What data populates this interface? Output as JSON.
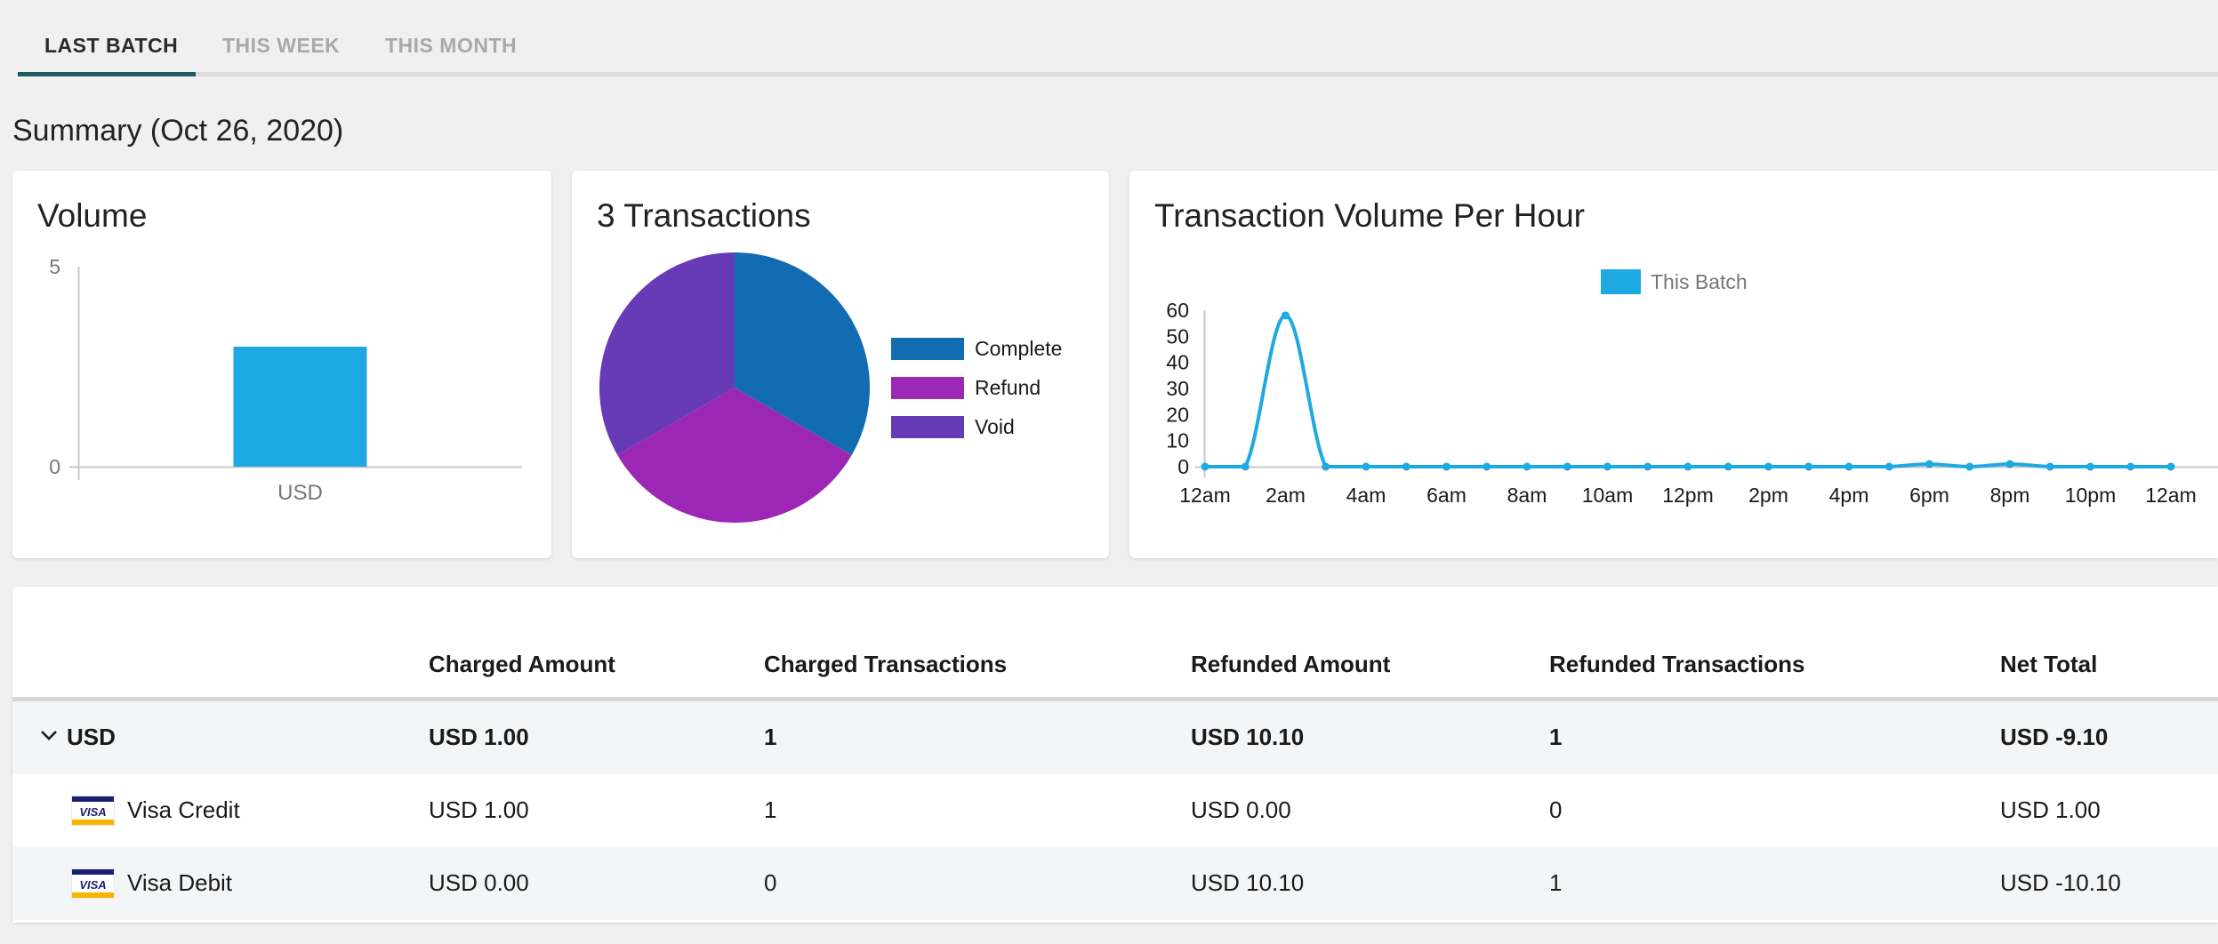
{
  "tabs": [
    "LAST BATCH",
    "THIS WEEK",
    "THIS MONTH"
  ],
  "summary_title": "Summary (Oct 26, 2020)",
  "cards": {
    "volume_title": "Volume",
    "transactions_title": "3 Transactions",
    "hourly_title": "Transaction Volume Per Hour"
  },
  "chart_data": [
    {
      "type": "bar",
      "title": "Volume",
      "categories": [
        "USD"
      ],
      "values": [
        3
      ],
      "yticks": [
        "5",
        "0"
      ],
      "ylim": [
        0,
        5
      ],
      "color": "#1ea9e3"
    },
    {
      "type": "pie",
      "title": "3 Transactions",
      "labels": [
        "Complete",
        "Refund",
        "Void"
      ],
      "values": [
        1,
        1,
        1
      ],
      "colors": [
        "#126cb2",
        "#9c27b5",
        "#673ab7"
      ],
      "legend": "right"
    },
    {
      "type": "line",
      "title": "Transaction Volume Per Hour",
      "series": [
        {
          "name": "This Batch",
          "values": [
            0,
            0,
            58,
            0,
            0,
            0,
            0,
            0,
            0,
            0,
            0,
            0,
            0,
            0,
            0,
            0,
            0,
            0,
            1,
            0,
            1,
            0,
            0,
            0,
            0
          ]
        }
      ],
      "x_ticks": [
        "12am",
        "2am",
        "4am",
        "6am",
        "8am",
        "10am",
        "12pm",
        "2pm",
        "4pm",
        "6pm",
        "8pm",
        "10pm",
        "12am"
      ],
      "yticks": [
        "60",
        "50",
        "40",
        "30",
        "20",
        "10",
        "0"
      ],
      "ylim": [
        0,
        60
      ],
      "color": "#1ea9e3",
      "legend": "top"
    }
  ],
  "table": {
    "headers": [
      "Charged Amount",
      "Charged Transactions",
      "Refunded Amount",
      "Refunded Transactions",
      "Net Total"
    ],
    "group": {
      "label": "USD",
      "cells": [
        "USD 1.00",
        "1",
        "USD 10.10",
        "1",
        "USD -9.10"
      ]
    },
    "rows": [
      {
        "card_icon": "visa-card-icon",
        "label": "Visa Credit",
        "cells": [
          "USD 1.00",
          "1",
          "USD 0.00",
          "0",
          "USD 1.00"
        ]
      },
      {
        "card_icon": "visa-card-icon",
        "label": "Visa Debit",
        "cells": [
          "USD 0.00",
          "0",
          "USD 10.10",
          "1",
          "USD -10.10"
        ]
      }
    ]
  },
  "visa_logo_text": "VISA",
  "colors": {
    "accent": "#1f5c61",
    "brand_blue": "#1ea9e3"
  }
}
